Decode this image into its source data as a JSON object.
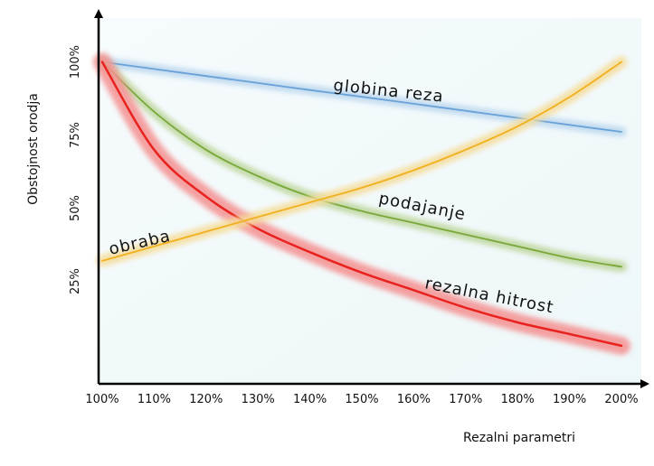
{
  "chart_data": {
    "type": "line",
    "title": "",
    "xlabel": "Rezalni parametri",
    "ylabel": "Obstojnost orodja",
    "x": [
      100,
      110,
      120,
      130,
      140,
      150,
      160,
      170,
      180,
      190,
      200
    ],
    "xtick_labels": [
      "100%",
      "110%",
      "120%",
      "130%",
      "140%",
      "150%",
      "160%",
      "170%",
      "180%",
      "190%",
      "200%"
    ],
    "ytick_values": [
      25,
      50,
      75,
      100
    ],
    "ytick_labels": [
      "25%",
      "50%",
      "75%",
      "100%"
    ],
    "xlim": [
      100,
      200
    ],
    "ylim": [
      -10,
      115
    ],
    "grid": false,
    "legend": "none",
    "series": [
      {
        "name": "globina reza",
        "color": "#6aa2d8",
        "halo": "#b9d6ee",
        "values": [
          100,
          97.6,
          95.2,
          92.8,
          90.4,
          88.1,
          85.7,
          83.3,
          80.9,
          78.5,
          76.1
        ]
      },
      {
        "name": "podajanje",
        "color": "#78a83a",
        "halo": "#bcd59a",
        "values": [
          100,
          83,
          70,
          61,
          54,
          49,
          45,
          41,
          37,
          33,
          30
        ]
      },
      {
        "name": "rezalna hitrost",
        "color": "#e8231f",
        "halo": "#f59090",
        "values": [
          100,
          70,
          54,
          43,
          35,
          28,
          22,
          16,
          11,
          7,
          3
        ]
      },
      {
        "name": "obraba",
        "color": "#f0b020",
        "halo": "#f6dc98",
        "values": [
          32,
          37,
          42,
          47,
          52,
          57,
          63,
          70,
          78,
          88,
          100
        ]
      }
    ]
  }
}
